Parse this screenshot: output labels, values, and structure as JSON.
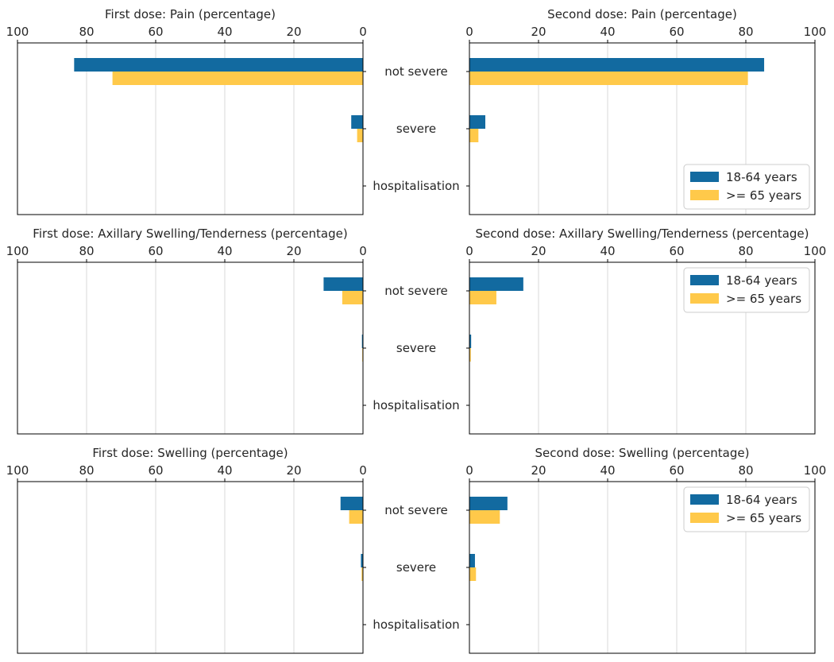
{
  "colors": {
    "series_a": "#126aa0",
    "series_b": "#ffc94a",
    "grid": "#d9d9d9",
    "axis": "#000000"
  },
  "chart_data": [
    {
      "type": "bar",
      "orientation": "horizontal",
      "title": "First dose: Pain (percentage)",
      "xlim": [
        100,
        0
      ],
      "xticks": [
        100,
        80,
        60,
        40,
        20,
        0
      ],
      "categories": [
        "not severe",
        "severe",
        "hospitalisation"
      ],
      "series": [
        {
          "name": "18-64 years",
          "values": [
            83.6,
            3.4,
            0
          ]
        },
        {
          "name": ">= 65 years",
          "values": [
            72.5,
            1.7,
            0
          ]
        }
      ],
      "grid": true,
      "legend": "none"
    },
    {
      "type": "bar",
      "orientation": "horizontal",
      "title": "Second dose: Pain (percentage)",
      "xlim": [
        0,
        100
      ],
      "xticks": [
        0,
        20,
        40,
        60,
        80,
        100
      ],
      "categories": [
        "not severe",
        "severe",
        "hospitalisation"
      ],
      "series": [
        {
          "name": "18-64 years",
          "values": [
            85.3,
            4.6,
            0
          ]
        },
        {
          "name": ">= 65 years",
          "values": [
            80.6,
            2.6,
            0
          ]
        }
      ],
      "grid": true,
      "legend": "lower right"
    },
    {
      "type": "bar",
      "orientation": "horizontal",
      "title": "First dose: Axillary Swelling/Tenderness (percentage)",
      "xlim": [
        100,
        0
      ],
      "xticks": [
        100,
        80,
        60,
        40,
        20,
        0
      ],
      "categories": [
        "not severe",
        "severe",
        "hospitalisation"
      ],
      "series": [
        {
          "name": "18-64 years",
          "values": [
            11.4,
            0.3,
            0
          ]
        },
        {
          "name": ">= 65 years",
          "values": [
            6.0,
            0.2,
            0
          ]
        }
      ],
      "grid": true,
      "legend": "none"
    },
    {
      "type": "bar",
      "orientation": "horizontal",
      "title": "Second dose: Axillary Swelling/Tenderness (percentage)",
      "xlim": [
        0,
        100
      ],
      "xticks": [
        0,
        20,
        40,
        60,
        80,
        100
      ],
      "categories": [
        "not severe",
        "severe",
        "hospitalisation"
      ],
      "series": [
        {
          "name": "18-64 years",
          "values": [
            15.6,
            0.5,
            0
          ]
        },
        {
          "name": ">= 65 years",
          "values": [
            7.8,
            0.4,
            0
          ]
        }
      ],
      "grid": true,
      "legend": "upper right"
    },
    {
      "type": "bar",
      "orientation": "horizontal",
      "title": "First dose: Swelling (percentage)",
      "xlim": [
        100,
        0
      ],
      "xticks": [
        100,
        80,
        60,
        40,
        20,
        0
      ],
      "categories": [
        "not severe",
        "severe",
        "hospitalisation"
      ],
      "series": [
        {
          "name": "18-64 years",
          "values": [
            6.5,
            0.6,
            0
          ]
        },
        {
          "name": ">= 65 years",
          "values": [
            4.0,
            0.4,
            0
          ]
        }
      ],
      "grid": true,
      "legend": "none"
    },
    {
      "type": "bar",
      "orientation": "horizontal",
      "title": "Second dose: Swelling (percentage)",
      "xlim": [
        0,
        100
      ],
      "xticks": [
        0,
        20,
        40,
        60,
        80,
        100
      ],
      "categories": [
        "not severe",
        "severe",
        "hospitalisation"
      ],
      "series": [
        {
          "name": "18-64 years",
          "values": [
            11.0,
            1.6,
            0
          ]
        },
        {
          "name": ">= 65 years",
          "values": [
            8.8,
            1.9,
            0
          ]
        }
      ],
      "grid": true,
      "legend": "upper right"
    }
  ]
}
